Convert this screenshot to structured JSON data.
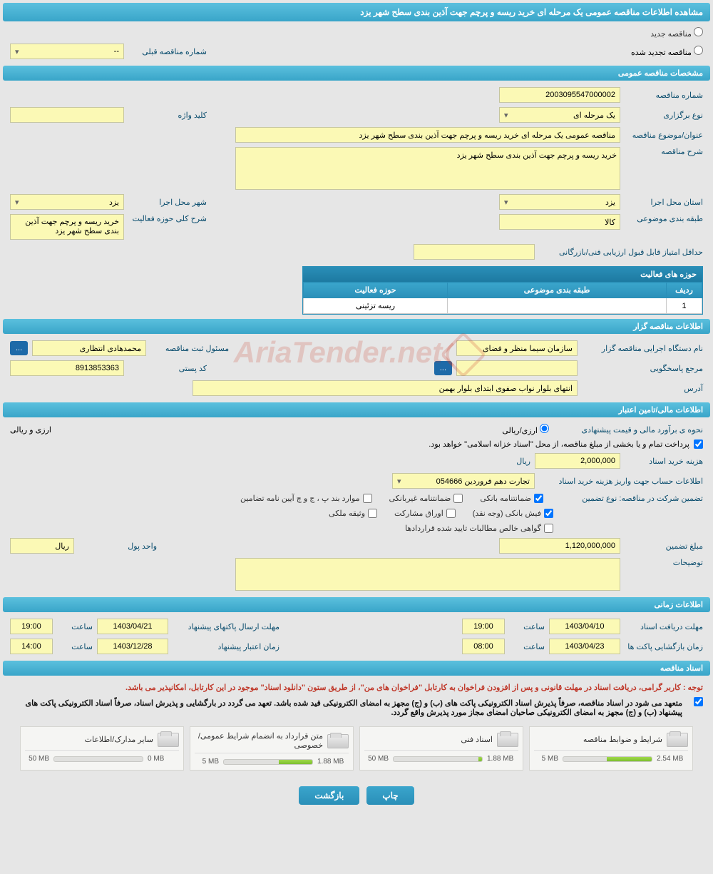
{
  "header": {
    "title": "مشاهده اطلاعات مناقصه عمومی یک مرحله ای خرید ریسه و پرچم جهت آذین بندی سطح شهر یزد"
  },
  "tender_status": {
    "new_label": "مناقصه جدید",
    "renewed_label": "مناقصه تجدید شده",
    "prev_number_label": "شماره مناقصه قبلی",
    "prev_number_value": "--"
  },
  "sections": {
    "general": "مشخصات مناقصه عمومی",
    "client": "اطلاعات مناقصه گزار",
    "finance": "اطلاعات مالی/تامین اعتبار",
    "timing": "اطلاعات زمانی",
    "docs": "اسناد مناقصه"
  },
  "general": {
    "number_label": "شماره مناقصه",
    "number_value": "2003095547000002",
    "type_label": "نوع برگزاری",
    "type_value": "یک مرحله ای",
    "keyword_label": "کلید واژه",
    "keyword_value": "",
    "title_label": "عنوان/موضوع مناقصه",
    "title_value": "مناقصه عمومی یک مرحله ای خرید ریسه و پرچم جهت آذین بندی سطح شهر یزد",
    "desc_label": "شرح مناقصه",
    "desc_value": "خرید ریسه و پرچم جهت آذین بندی سطح شهر یزد",
    "province_label": "استان محل اجرا",
    "province_value": "یزد",
    "city_label": "شهر محل اجرا",
    "city_value": "یزد",
    "category_label": "طبقه بندی موضوعی",
    "category_value": "کالا",
    "activity_scope_label": "شرح کلی حوزه فعالیت",
    "activity_scope_value": "خرید ریسه و پرچم جهت آذین بندی سطح شهر یزد",
    "min_score_label": "حداقل امتیاز قابل قبول ارزیابی فنی/بازرگانی",
    "min_score_value": ""
  },
  "activity_table": {
    "title": "حوزه های فعالیت",
    "columns": [
      "ردیف",
      "طبقه بندی موضوعی",
      "حوزه فعالیت"
    ],
    "rows": [
      [
        "1",
        "",
        "ریسه تزئینی"
      ]
    ]
  },
  "client": {
    "org_label": "نام دستگاه اجرایی مناقصه گزار",
    "org_value": "سازمان سیما منظر و فضای",
    "reg_official_label": "مسئول ثبت مناقصه",
    "reg_official_value": "محمدهادی انتظاری",
    "response_ref_label": "مرجع پاسخگویی",
    "response_ref_value": "",
    "postal_label": "کد پستی",
    "postal_value": "8913853363",
    "address_label": "آدرس",
    "address_value": "انتهای بلوار نواب صفوی ابتدای بلوار بهمن"
  },
  "finance": {
    "estimate_label": "نحوه ی برآورد مالی و قیمت پیشنهادی",
    "currency_option_rial": "ارزی/ریالی",
    "currency_option_both": "ارزی و ریالی",
    "treasury_note": "پرداخت تمام و یا بخشی از مبلغ مناقصه، از محل \"اسناد خزانه اسلامی\" خواهد بود.",
    "doc_cost_label": "هزینه خرید اسناد",
    "doc_cost_value": "2,000,000",
    "rial_unit": "ریال",
    "account_info_label": "اطلاعات حساب جهت واریز هزینه خرید اسناد",
    "account_value": "تجارت دهم فروردین 054666",
    "guarantee_label": "تضمین شرکت در مناقصه:   نوع تضمین",
    "chk_bank_guarantee": "ضمانتنامه بانکی",
    "chk_nonbank_guarantee": "ضمانتنامه غیربانکی",
    "chk_bylaw_cases": "موارد بند پ ، ج و چ آیین نامه تضامین",
    "chk_bank_receipt": "فیش بانکی (وجه نقد)",
    "chk_securities": "اوراق مشارکت",
    "chk_property_pledge": "وثیقه ملکی",
    "chk_receivables_cert": "گواهی خالص مطالبات تایید شده قراردادها",
    "guarantee_amount_label": "مبلغ تضمین",
    "guarantee_amount_value": "1,120,000,000",
    "currency_unit_label": "واحد پول",
    "currency_unit_value": "ریال",
    "explanation_label": "توضیحات",
    "explanation_value": ""
  },
  "timing": {
    "receive_deadline_label": "مهلت دریافت اسناد",
    "receive_deadline_date": "1403/04/10",
    "hour_label": "ساعت",
    "receive_deadline_time": "19:00",
    "submit_deadline_label": "مهلت ارسال پاکتهای پیشنهاد",
    "submit_deadline_date": "1403/04/21",
    "submit_deadline_time": "19:00",
    "opening_label": "زمان بازگشایی پاکت ها",
    "opening_date": "1403/04/23",
    "opening_time": "08:00",
    "validity_label": "زمان اعتبار پیشنهاد",
    "validity_date": "1403/12/28",
    "validity_time": "14:00"
  },
  "docs": {
    "note1": "توجه : کاربر گرامی، دریافت اسناد در مهلت قانونی و پس از افزودن فراخوان به کارتابل \"فراخوان های من\"، از طریق ستون \"دانلود اسناد\" موجود در این کارتابل، امکانپذیر می باشد.",
    "note2": "متعهد می شود در اسناد مناقصه، صرفاً پذیرش اسناد الکترونیکی پاکت های (ب) و (ج) مجهز به امضای الکترونیکی قید شده باشد. تعهد می گردد در بارگشایی و پذیرش اسناد، صرفاً اسناد الکترونیکی پاکت های پیشنهاد (ب) و (ج) مجهز به امضای الکترونیکی صاحبان امضای مجاز مورد پذیرش واقع گردد.",
    "files": [
      {
        "title": "شرایط و ضوابط مناقصه",
        "size": "2.54 MB",
        "max": "5 MB",
        "fill": 51
      },
      {
        "title": "اسناد فنی",
        "size": "1.88 MB",
        "max": "50 MB",
        "fill": 4
      },
      {
        "title": "متن قرارداد به انضمام شرایط عمومی/خصوصی",
        "size": "1.88 MB",
        "max": "5 MB",
        "fill": 38
      },
      {
        "title": "سایر مدارک/اطلاعات",
        "size": "0 MB",
        "max": "50 MB",
        "fill": 0
      }
    ]
  },
  "buttons": {
    "print": "چاپ",
    "back": "بازگشت",
    "more": "..."
  },
  "watermark": "AriaTender.net",
  "colors": {
    "accent": "#39a5c9",
    "field_bg": "#fbf9b5"
  }
}
